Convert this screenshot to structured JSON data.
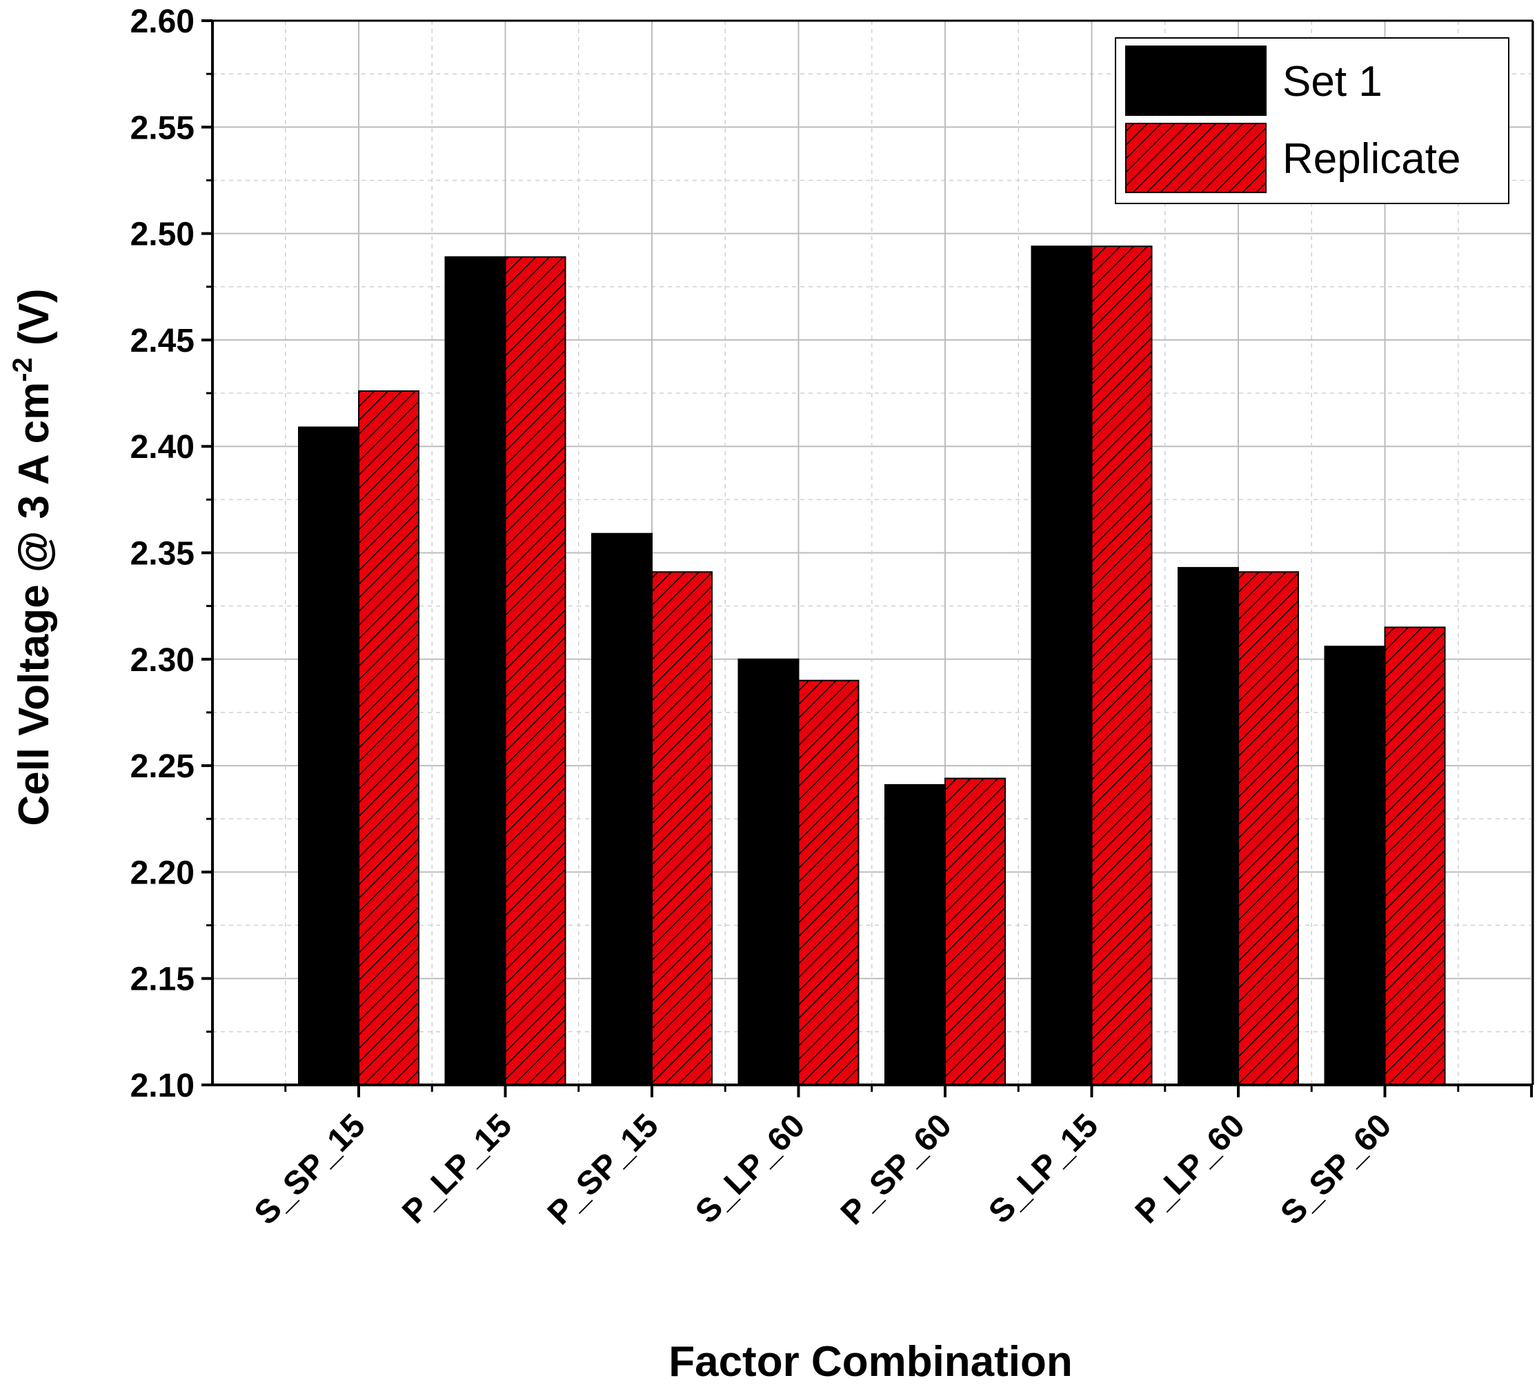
{
  "chart_data": {
    "type": "bar",
    "categories": [
      "S_SP_15",
      "P_LP_15",
      "P_SP_15",
      "S_LP_60",
      "P_SP_60",
      "S_LP_15",
      "P_LP_60",
      "S_SP_60"
    ],
    "series": [
      {
        "name": "Set 1",
        "values": [
          2.409,
          2.489,
          2.359,
          2.3,
          2.241,
          2.494,
          2.343,
          2.306
        ],
        "color": "#000000"
      },
      {
        "name": "Replicate",
        "values": [
          2.426,
          2.489,
          2.341,
          2.29,
          2.244,
          2.494,
          2.341,
          2.315
        ],
        "color": "#e8000b",
        "hatch": "diagonal"
      }
    ],
    "xlabel": "Factor Combination",
    "ylabel_main": "Cell Voltage @ 3 A cm",
    "ylabel_sup": "-2",
    "ylabel_end": " (V)",
    "ylim": [
      2.1,
      2.6
    ],
    "yticks": [
      "2.10",
      "2.15",
      "2.20",
      "2.25",
      "2.30",
      "2.35",
      "2.40",
      "2.45",
      "2.50",
      "2.55",
      "2.60"
    ],
    "grid": true,
    "legend_position": "top-right"
  }
}
